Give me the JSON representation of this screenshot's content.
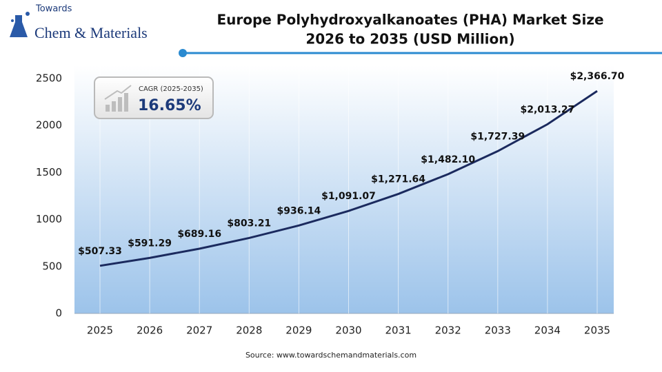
{
  "logo": {
    "top": "Towards",
    "bottom": "Chem & Materials"
  },
  "chart_data": {
    "type": "line",
    "title": "Europe Polyhydroxyalkanoates (PHA) Market Size",
    "subtitle": "2026 to 2035 (USD Million)",
    "categories": [
      "2025",
      "2026",
      "2027",
      "2028",
      "2029",
      "2030",
      "2031",
      "2032",
      "2033",
      "2034",
      "2035"
    ],
    "values": [
      507.33,
      591.29,
      689.16,
      803.21,
      936.14,
      1091.07,
      1271.64,
      1482.1,
      1727.39,
      2013.27,
      2366.7
    ],
    "value_labels": [
      "$507.33",
      "$591.29",
      "$689.16",
      "$803.21",
      "$936.14",
      "$1,091.07",
      "$1,271.64",
      "$1,482.10",
      "$1,727.39",
      "$2,013.27",
      "$2,366.70"
    ],
    "color": "#1b2a5e",
    "ylim": [
      0,
      2500
    ],
    "yticks": [
      0,
      500,
      1000,
      1500,
      2000,
      2500
    ],
    "cagr_label": "CAGR (2025-2035)",
    "cagr_value": "16.65%",
    "source": "Source: www.towardschemandmaterials.com"
  }
}
